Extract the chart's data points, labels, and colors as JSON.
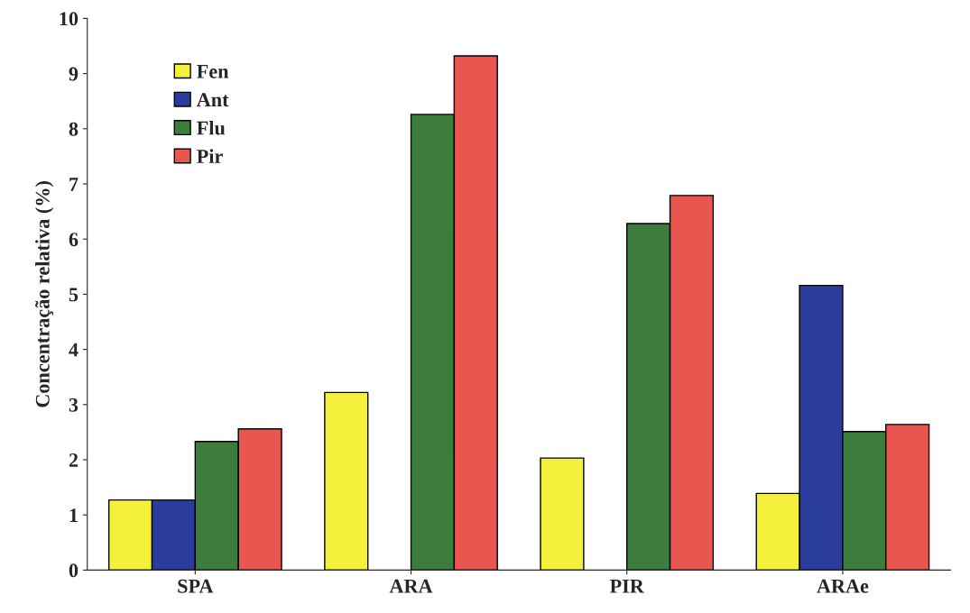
{
  "chart_data": {
    "type": "bar",
    "ylabel": "Concentração relativa (%)",
    "categories": [
      "SPA",
      "ARA",
      "PIR",
      "ARAe"
    ],
    "series": [
      {
        "name": "Fen",
        "color": "#f5f03c",
        "values": [
          1.27,
          3.22,
          2.03,
          1.39
        ]
      },
      {
        "name": "Ant",
        "color": "#2a3c9c",
        "values": [
          1.27,
          null,
          null,
          5.16
        ]
      },
      {
        "name": "Flu",
        "color": "#3c7d3c",
        "values": [
          2.33,
          8.26,
          6.28,
          2.51
        ]
      },
      {
        "name": "Pir",
        "color": "#e8564f",
        "values": [
          2.56,
          9.32,
          6.79,
          2.64
        ]
      }
    ],
    "ylim": [
      0,
      10
    ],
    "yticks": [
      0,
      1,
      2,
      3,
      4,
      5,
      6,
      7,
      8,
      9,
      10
    ],
    "grid": false,
    "legend": "top left"
  }
}
